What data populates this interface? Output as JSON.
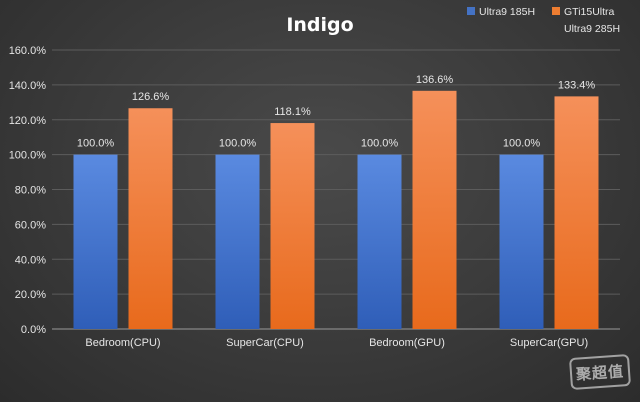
{
  "chart_data": {
    "type": "bar",
    "title": "Indigo",
    "categories": [
      "Bedroom(CPU)",
      "SuperCar(CPU)",
      "Bedroom(GPU)",
      "SuperCar(GPU)"
    ],
    "series": [
      {
        "name": "Ultra9 185H",
        "color": "#4472C4",
        "values": [
          100.0,
          100.0,
          100.0,
          100.0
        ],
        "labels": [
          "100.0%",
          "100.0%",
          "100.0%",
          "100.0%"
        ]
      },
      {
        "name": "GTi15Ultra Ultra9 285H",
        "color": "#ED7D31",
        "values": [
          126.6,
          118.1,
          136.6,
          133.4
        ],
        "labels": [
          "126.6%",
          "118.1%",
          "136.6%",
          "133.4%"
        ]
      }
    ],
    "ylim": [
      0,
      160
    ],
    "yticks": [
      "0.0%",
      "20.0%",
      "40.0%",
      "60.0%",
      "80.0%",
      "100.0%",
      "120.0%",
      "140.0%",
      "160.0%"
    ],
    "grid": true,
    "legend": "top-right",
    "xlabel": "",
    "ylabel": ""
  },
  "legend_lines": [
    [
      "Ultra9 185H"
    ],
    [
      "GTi15Ultra",
      "Ultra9 285H"
    ]
  ],
  "watermark": "聚超值"
}
